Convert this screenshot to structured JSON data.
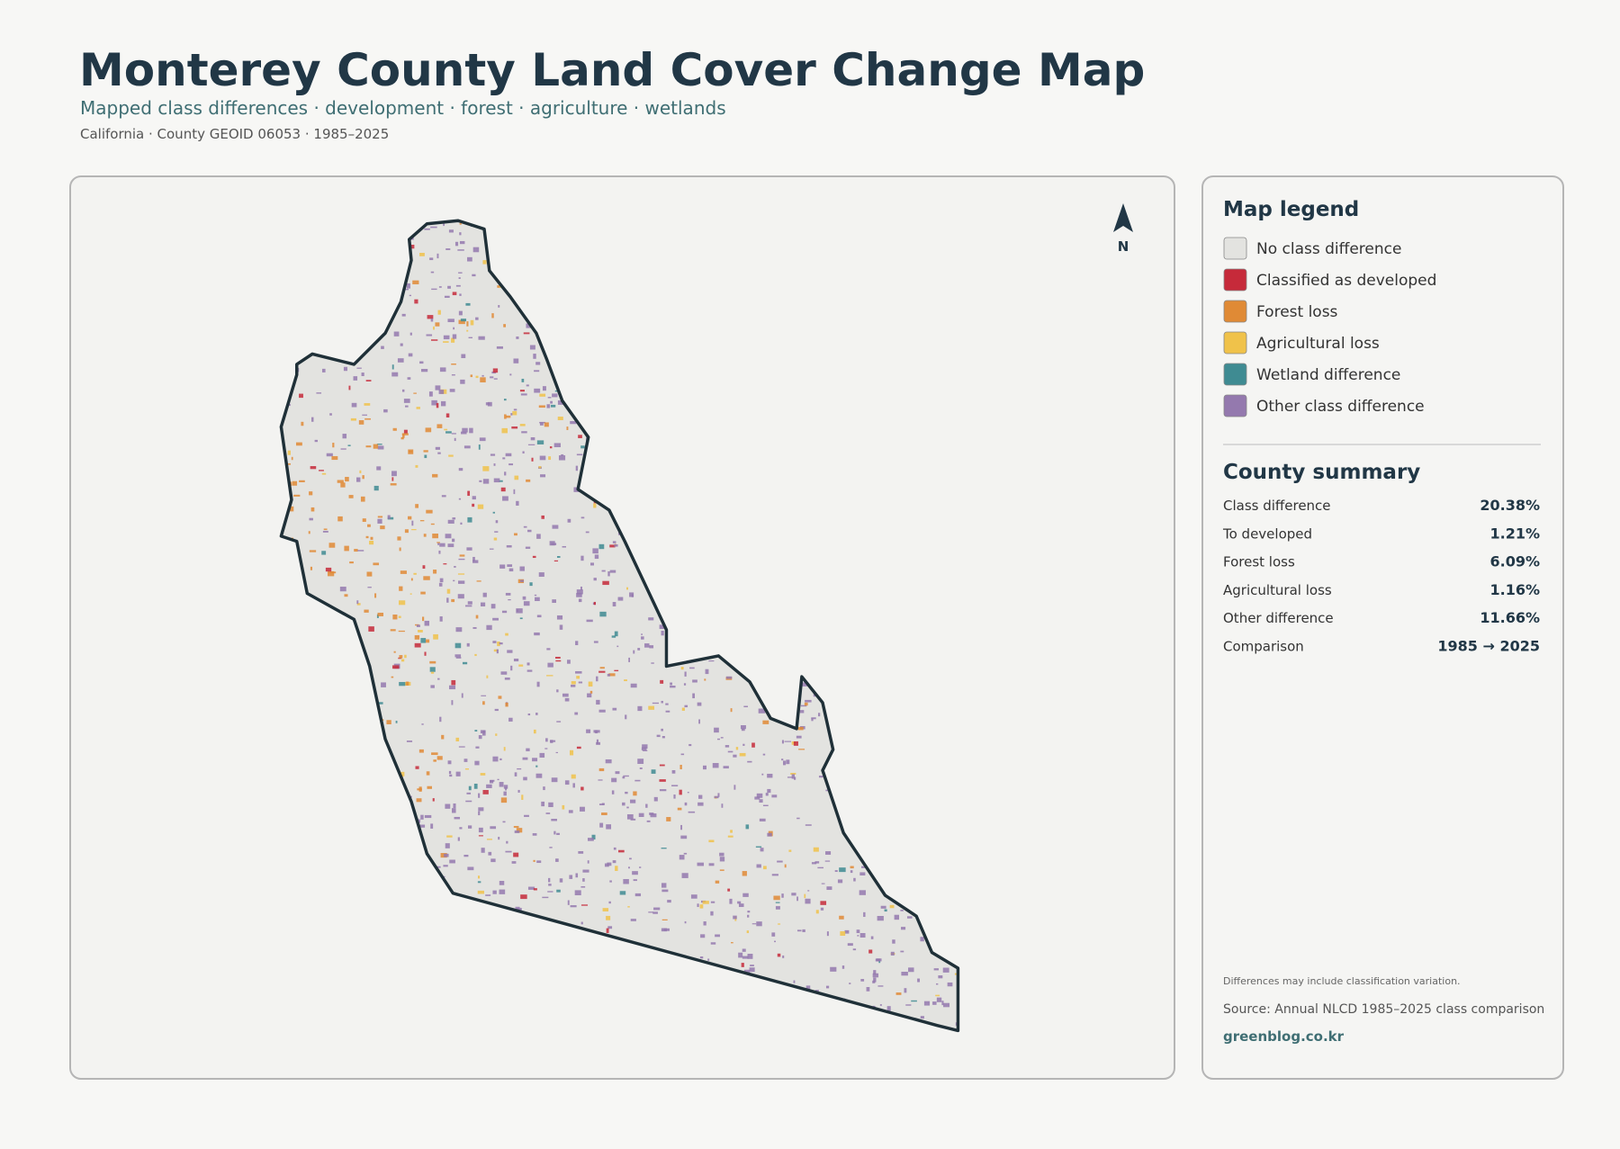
{
  "header": {
    "title": "Monterey County Land Cover Change Map",
    "subtitle": "Mapped class differences · development · forest · agriculture · wetlands",
    "meta": "California · County GEOID 06053 · 1985–2025"
  },
  "map": {
    "north_label": "N"
  },
  "legend": {
    "title": "Map legend",
    "items": [
      {
        "label": "No class difference",
        "color": "#e3e3e0"
      },
      {
        "label": "Classified as developed",
        "color": "#c62a3a"
      },
      {
        "label": "Forest loss",
        "color": "#e08a35"
      },
      {
        "label": "Agricultural loss",
        "color": "#f0c24a"
      },
      {
        "label": "Wetland difference",
        "color": "#3f8b92"
      },
      {
        "label": "Other class difference",
        "color": "#9479ae"
      }
    ]
  },
  "summary": {
    "title": "County summary",
    "rows": [
      [
        "Class difference",
        "20.38%"
      ],
      [
        "To developed",
        "1.21%"
      ],
      [
        "Forest loss",
        "6.09%"
      ],
      [
        "Agricultural loss",
        "1.16%"
      ],
      [
        "Other difference",
        "11.66%"
      ],
      [
        "Comparison",
        "1985 → 2025"
      ]
    ]
  },
  "footer": {
    "note": "Differences may include classification variation.",
    "source": "Source: Annual NLCD 1985–2025 class comparison",
    "website": "greenblog.co.kr"
  }
}
